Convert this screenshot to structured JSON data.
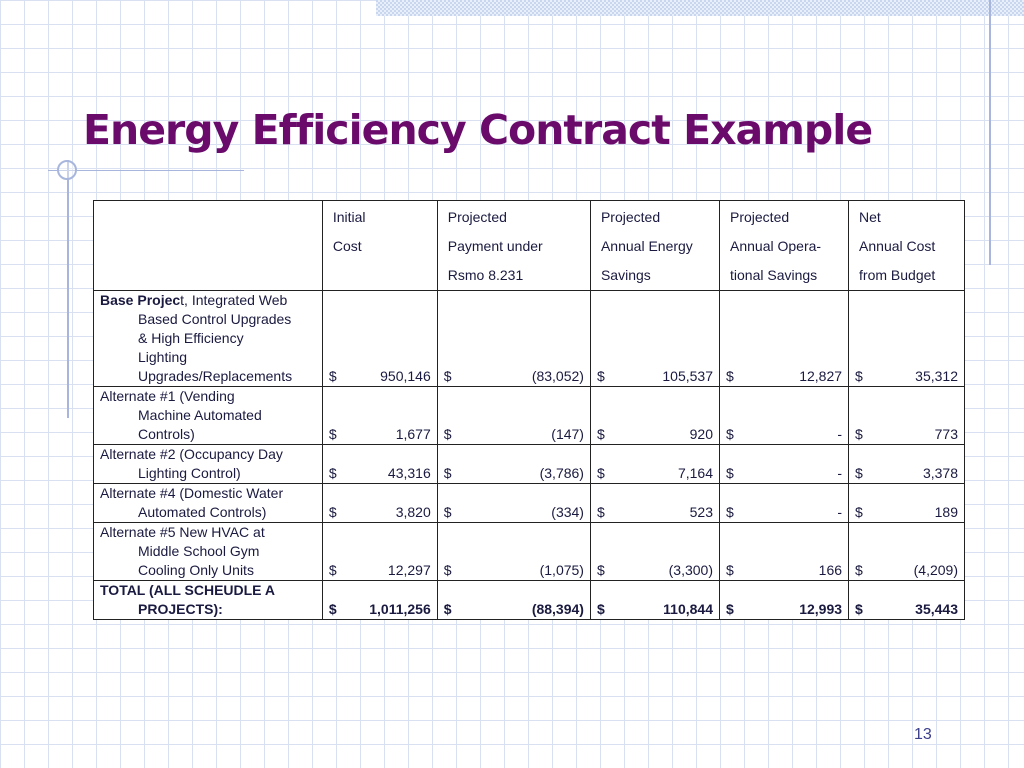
{
  "slide": {
    "title": "Energy Efficiency Contract Example",
    "page_number": "13"
  },
  "table": {
    "headers": [
      "",
      [
        "Initial",
        "Cost"
      ],
      [
        "Projected",
        "Payment under",
        "Rsmo 8.231"
      ],
      [
        "Projected",
        "Annual Energy",
        "Savings"
      ],
      [
        "Projected",
        "Annual Opera-",
        "tional Savings"
      ],
      [
        "Net",
        "Annual Cost",
        "from Budget"
      ]
    ],
    "rows": [
      {
        "desc_bold": "Base Projec",
        "desc_first": "t, Integrated Web",
        "desc_rest": [
          "Based Control Upgrades",
          "& High Efficiency",
          "Lighting",
          "Upgrades/Replacements"
        ],
        "cells": [
          {
            "cur": "$",
            "val": "950,146"
          },
          {
            "cur": "$",
            "val": "(83,052)"
          },
          {
            "cur": "$",
            "val": "105,537"
          },
          {
            "cur": "$",
            "val": "12,827"
          },
          {
            "cur": "$",
            "val": "35,312"
          }
        ]
      },
      {
        "desc_first": "Alternate #1 (Vending",
        "desc_rest": [
          "Machine Automated",
          "Controls)"
        ],
        "cells": [
          {
            "cur": "$",
            "val": "1,677"
          },
          {
            "cur": "$",
            "val": "(147)"
          },
          {
            "cur": "$",
            "val": "920"
          },
          {
            "cur": "$",
            "val": "-"
          },
          {
            "cur": "$",
            "val": "773"
          }
        ]
      },
      {
        "desc_first": "Alternate #2 (Occupancy Day",
        "desc_rest": [
          "Lighting Control)"
        ],
        "cells": [
          {
            "cur": "$",
            "val": "43,316"
          },
          {
            "cur": "$",
            "val": "(3,786)"
          },
          {
            "cur": "$",
            "val": "7,164"
          },
          {
            "cur": "$",
            "val": "-"
          },
          {
            "cur": "$",
            "val": "3,378"
          }
        ]
      },
      {
        "desc_first": "Alternate #4 (Domestic Water",
        "desc_rest": [
          "Automated Controls)"
        ],
        "cells": [
          {
            "cur": "$",
            "val": "3,820"
          },
          {
            "cur": "$",
            "val": "(334)"
          },
          {
            "cur": "$",
            "val": "523"
          },
          {
            "cur": "$",
            "val": "-"
          },
          {
            "cur": "$",
            "val": "189"
          }
        ]
      },
      {
        "desc_first": "Alternate #5 New HVAC at",
        "desc_rest": [
          "Middle School Gym",
          "Cooling Only Units"
        ],
        "cells": [
          {
            "cur": "$",
            "val": "12,297"
          },
          {
            "cur": "$",
            "val": "(1,075)"
          },
          {
            "cur": "$",
            "val": "(3,300)"
          },
          {
            "cur": "$",
            "val": "166"
          },
          {
            "cur": "$",
            "val": "(4,209)"
          }
        ]
      }
    ],
    "total": {
      "desc_first": "TOTAL (ALL SCHEUDLE A",
      "desc_rest": [
        "PROJECTS):"
      ],
      "cells": [
        {
          "cur": "$",
          "val": "1,011,256"
        },
        {
          "cur": "$",
          "val": "(88,394)"
        },
        {
          "cur": "$",
          "val": "110,844"
        },
        {
          "cur": "$",
          "val": "12,993"
        },
        {
          "cur": "$",
          "val": "35,443"
        }
      ]
    }
  }
}
